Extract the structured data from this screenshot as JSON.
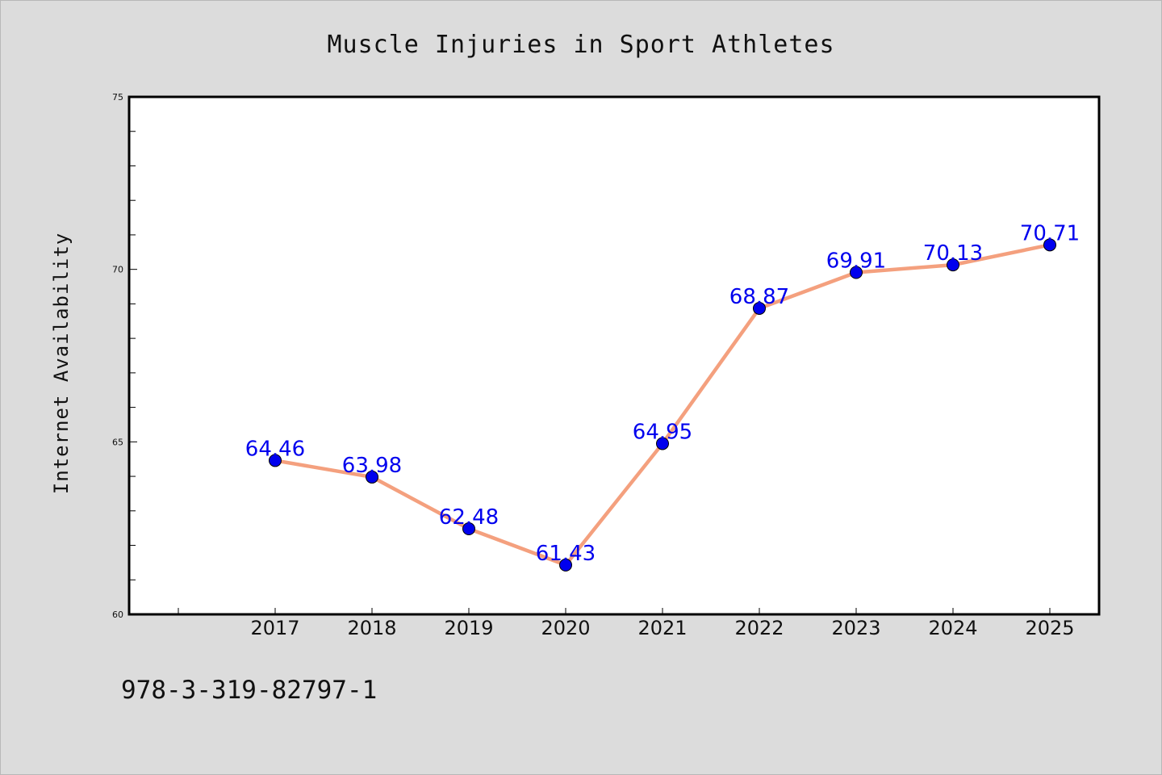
{
  "chart_data": {
    "type": "line",
    "title": "Muscle Injuries in Sport Athletes",
    "xlabel": "",
    "ylabel": "Internet Availability",
    "categories": [
      "2017",
      "2018",
      "2019",
      "2020",
      "2021",
      "2022",
      "2023",
      "2024",
      "2025"
    ],
    "series": [
      {
        "values": [
          64.46,
          63.98,
          62.48,
          61.43,
          64.95,
          68.87,
          69.91,
          70.13,
          70.71
        ],
        "labels": [
          "64.46",
          "63.98",
          "62.48",
          "61.43",
          "64.95",
          "68.87",
          "69.91",
          "70.13",
          "70.71"
        ]
      }
    ],
    "ylim": [
      60,
      75
    ],
    "yticks": [
      "60",
      "65",
      "70",
      "75"
    ],
    "grid": false,
    "legend": "none",
    "colors": {
      "line": "#f4a07e",
      "marker": "#0000ee",
      "data_label": "#0000ee",
      "background": "#dcdcdc",
      "plot_area": "#ffffff"
    }
  },
  "footer": {
    "isbn": "978-3-319-82797-1"
  }
}
